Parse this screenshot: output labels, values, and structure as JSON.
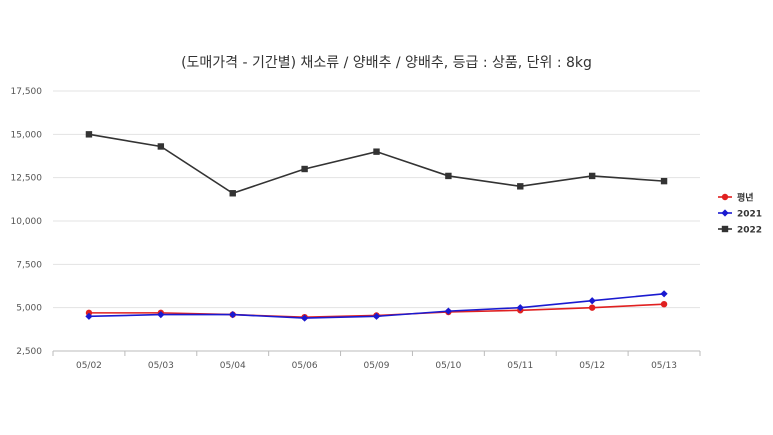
{
  "chart_data": {
    "type": "line",
    "title": "(도매가격 - 기간별) 채소류 / 양배추 / 양배추, 등급 : 상품, 단위 : 8kg",
    "categories": [
      "05/02",
      "05/03",
      "05/04",
      "05/06",
      "05/09",
      "05/10",
      "05/11",
      "05/12",
      "05/13"
    ],
    "ylim": [
      2500,
      17500
    ],
    "yticks": [
      2500,
      5000,
      7500,
      10000,
      12500,
      15000,
      17500
    ],
    "ytick_labels": [
      "2,500",
      "5,000",
      "7,500",
      "10,000",
      "12,500",
      "15,000",
      "17,500"
    ],
    "grid": true,
    "legend_position": "right",
    "series": [
      {
        "name": "평년",
        "color": "#e02020",
        "marker": "circle",
        "values": [
          4700,
          4700,
          4600,
          4450,
          4550,
          4750,
          4850,
          5000,
          5200
        ]
      },
      {
        "name": "2021",
        "color": "#1a1ad0",
        "marker": "diamond",
        "values": [
          4500,
          4600,
          4600,
          4400,
          4500,
          4800,
          5000,
          5400,
          5800
        ]
      },
      {
        "name": "2022",
        "color": "#333333",
        "marker": "square",
        "values": [
          15000,
          14300,
          11600,
          13000,
          14000,
          12600,
          12000,
          12600,
          12300
        ]
      }
    ]
  }
}
